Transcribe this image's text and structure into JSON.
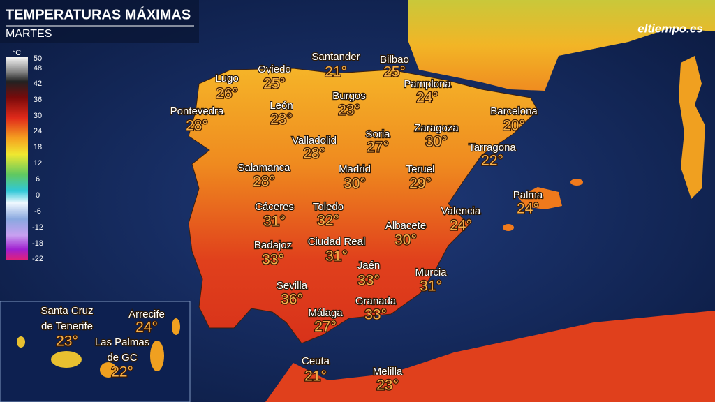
{
  "header": {
    "title": "TEMPERATURAS MÁXIMAS",
    "subtitle": "MARTES",
    "logo": "eltiempo.es"
  },
  "legend": {
    "unit": "°C",
    "ticks": [
      50,
      48,
      42,
      36,
      30,
      24,
      18,
      12,
      6,
      0,
      -6,
      -12,
      -18,
      -22
    ]
  },
  "cities": [
    {
      "lines": [
        "Santander"
      ],
      "temp": "21°"
    },
    {
      "lines": [
        "Bilbao"
      ],
      "temp": "25°"
    },
    {
      "lines": [
        "Lugo"
      ],
      "temp": "26°"
    },
    {
      "lines": [
        "Oviedo"
      ],
      "temp": "25°"
    },
    {
      "lines": [
        "Pamplona"
      ],
      "temp": "24°"
    },
    {
      "lines": [
        "Burgos"
      ],
      "temp": "23°"
    },
    {
      "lines": [
        "León"
      ],
      "temp": "23°"
    },
    {
      "lines": [
        "Pontevedra"
      ],
      "temp": "28°"
    },
    {
      "lines": [
        "Barcelona"
      ],
      "temp": "20°"
    },
    {
      "lines": [
        "Zaragoza"
      ],
      "temp": "30°"
    },
    {
      "lines": [
        "Soria"
      ],
      "temp": "27°"
    },
    {
      "lines": [
        "Valladolid"
      ],
      "temp": "28°"
    },
    {
      "lines": [
        "Tarragona"
      ],
      "temp": "22°"
    },
    {
      "lines": [
        "Madrid"
      ],
      "temp": "30°"
    },
    {
      "lines": [
        "Teruel"
      ],
      "temp": "29°"
    },
    {
      "lines": [
        "Salamanca"
      ],
      "temp": "28°"
    },
    {
      "lines": [
        "Palma"
      ],
      "temp": "24°"
    },
    {
      "lines": [
        "Cáceres"
      ],
      "temp": "31°"
    },
    {
      "lines": [
        "Toledo"
      ],
      "temp": "32°"
    },
    {
      "lines": [
        "Valencia"
      ],
      "temp": "24°"
    },
    {
      "lines": [
        "Albacete"
      ],
      "temp": "30°"
    },
    {
      "lines": [
        "Badajoz"
      ],
      "temp": "33°"
    },
    {
      "lines": [
        "Ciudad Real"
      ],
      "temp": "31°"
    },
    {
      "lines": [
        "Jaén"
      ],
      "temp": "33°"
    },
    {
      "lines": [
        "Murcia"
      ],
      "temp": "31°"
    },
    {
      "lines": [
        "Sevilla"
      ],
      "temp": "36°"
    },
    {
      "lines": [
        "Granada"
      ],
      "temp": "33°"
    },
    {
      "lines": [
        "Málaga"
      ],
      "temp": "27°"
    },
    {
      "lines": [
        "Ceuta"
      ],
      "temp": "21°"
    },
    {
      "lines": [
        "Melilla"
      ],
      "temp": "23°"
    },
    {
      "lines": [
        "Santa Cruz",
        "de Tenerife"
      ],
      "temp": "23°"
    },
    {
      "lines": [
        "Arrecife"
      ],
      "temp": "24°"
    },
    {
      "lines": [
        "Las Palmas",
        "de GC"
      ],
      "temp": "22°"
    }
  ]
}
